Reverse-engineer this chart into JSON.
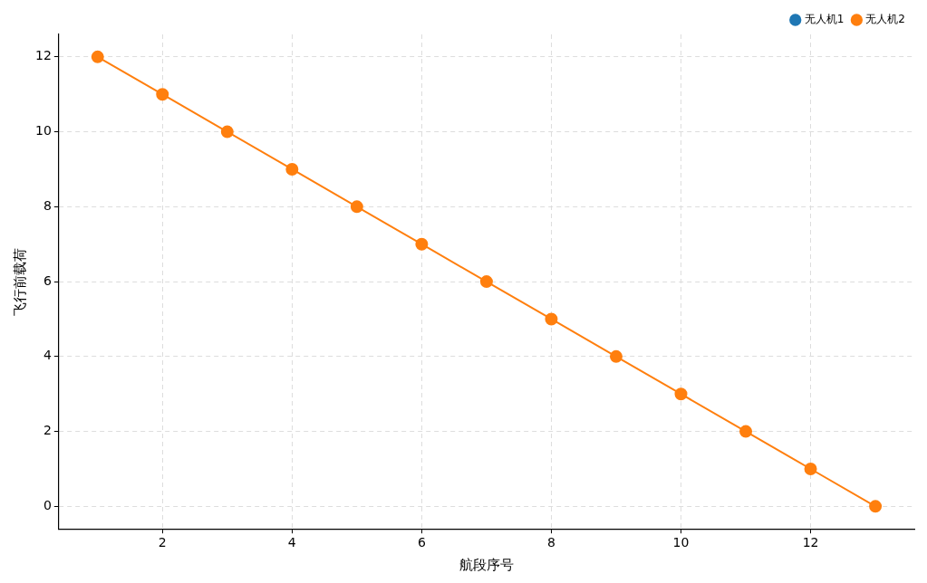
{
  "chart_data": {
    "type": "line",
    "xlabel": "航段序号",
    "ylabel": "飞行前载荷",
    "x": [
      1,
      2,
      3,
      4,
      5,
      6,
      7,
      8,
      9,
      10,
      11,
      12,
      13
    ],
    "series": [
      {
        "name": "无人机1",
        "color": "#1f77b4",
        "values": [
          null,
          null,
          null,
          null,
          null,
          null,
          null,
          null,
          null,
          null,
          null,
          null,
          null
        ]
      },
      {
        "name": "无人机2",
        "color": "#ff7f0e",
        "values": [
          12,
          11,
          10,
          9,
          8,
          7,
          6,
          5,
          4,
          3,
          2,
          1,
          0
        ]
      }
    ],
    "xlim": [
      0.4,
      13.6
    ],
    "xticks": [
      2,
      4,
      6,
      8,
      10,
      12
    ],
    "ylim": [
      -0.6,
      12.6
    ],
    "yticks": [
      0,
      2,
      4,
      6,
      8,
      10,
      12
    ],
    "grid": true,
    "legend": "top right",
    "marker": "circle",
    "line_style": "solid"
  }
}
